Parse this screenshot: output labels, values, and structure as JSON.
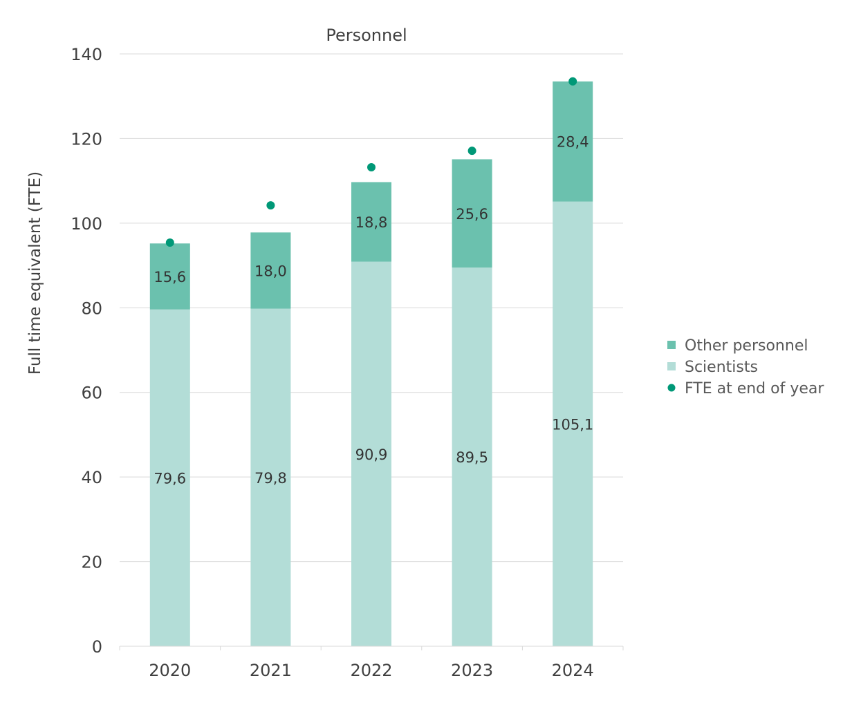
{
  "chart_data": {
    "type": "bar",
    "stacked": true,
    "title": "Personnel",
    "xlabel": "",
    "ylabel": "Full time equivalent (FTE)",
    "ylim": [
      0,
      140
    ],
    "yticks": [
      0,
      20,
      40,
      60,
      80,
      100,
      120,
      140
    ],
    "grid": true,
    "legend_position": "right",
    "categories": [
      "2020",
      "2021",
      "2022",
      "2023",
      "2024"
    ],
    "series": [
      {
        "name": "Scientists",
        "kind": "bar",
        "color": "#b3ddd7",
        "values": [
          79.6,
          79.8,
          90.9,
          89.5,
          105.1
        ],
        "labels": [
          "79,6",
          "79,8",
          "90,9",
          "89,5",
          "105,1"
        ]
      },
      {
        "name": "Other personnel",
        "kind": "bar",
        "color": "#6bc1ae",
        "values": [
          15.6,
          18.0,
          18.8,
          25.6,
          28.4
        ],
        "labels": [
          "15,6",
          "18,0",
          "18,8",
          "25,6",
          "28,4"
        ]
      },
      {
        "name": "FTE at end of year",
        "kind": "marker",
        "color": "#009877",
        "values": [
          95.4,
          104.2,
          113.2,
          117.1,
          133.5
        ]
      }
    ],
    "legend_order": [
      "Other personnel",
      "Scientists",
      "FTE at end of year"
    ]
  }
}
